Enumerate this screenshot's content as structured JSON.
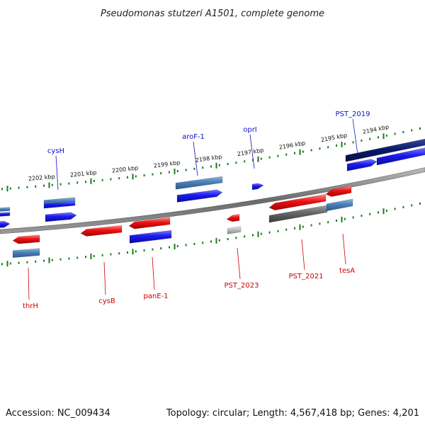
{
  "title": "Pseudomonas stutzeri A1501, complete genome",
  "footer": {
    "accession": "Accession: NC_009434",
    "topology": "Topology: circular; Length: 4,567,418 bp; Genes: 4,201"
  },
  "scale_ticks": [
    {
      "label": "2202 kbp",
      "pos": 2202
    },
    {
      "label": "2201 kbp",
      "pos": 2201
    },
    {
      "label": "2200 kbp",
      "pos": 2200
    },
    {
      "label": "2199 kbp",
      "pos": 2199
    },
    {
      "label": "2198 kbp",
      "pos": 2198
    },
    {
      "label": "2197 kbp",
      "pos": 2197
    },
    {
      "label": "2196 kbp",
      "pos": 2196
    },
    {
      "label": "2195 kbp",
      "pos": 2195
    },
    {
      "label": "2194 kbp",
      "pos": 2194
    }
  ],
  "gene_labels_top": [
    {
      "name": "cysH"
    },
    {
      "name": "aroF-1"
    },
    {
      "name": "oprI"
    },
    {
      "name": "PST_2019"
    }
  ],
  "gene_labels_bottom": [
    {
      "name": "thrH"
    },
    {
      "name": "cysB"
    },
    {
      "name": "panE-1"
    },
    {
      "name": "PST_2023"
    },
    {
      "name": "PST_2021"
    },
    {
      "name": "tesA"
    }
  ],
  "colors": {
    "forward_label": "#1010cc",
    "reverse_label": "#cc0000",
    "tick": "#1a7a1a",
    "backbone": "#7a7a7a",
    "blue": "#1a1aee",
    "steel": "#4a80b8",
    "navy": "#0a1a6a",
    "red": "#ee1111",
    "gray": "#666666",
    "light_gray": "#bbbbbb"
  }
}
